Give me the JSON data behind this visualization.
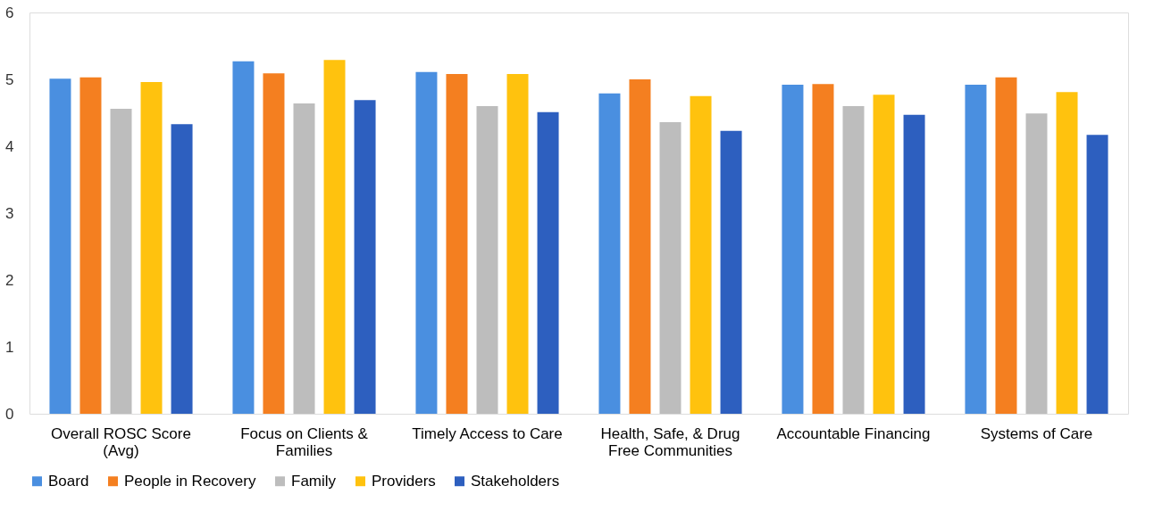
{
  "chart_data": {
    "type": "bar",
    "categories": [
      "Overall ROSC Score (Avg)",
      "Focus on Clients & Families",
      "Timely Access to Care",
      "Health, Safe, & Drug Free Communities",
      "Accountable Financing",
      "Systems of Care"
    ],
    "series": [
      {
        "name": "Board",
        "color": "#4a8fe0",
        "values": [
          5.01,
          5.27,
          5.11,
          4.79,
          4.92,
          4.92
        ]
      },
      {
        "name": "People in Recovery",
        "color": "#f47f20",
        "values": [
          5.03,
          5.09,
          5.08,
          5.0,
          4.93,
          5.03
        ]
      },
      {
        "name": "Family",
        "color": "#bdbdbd",
        "values": [
          4.56,
          4.64,
          4.6,
          4.36,
          4.6,
          4.49
        ]
      },
      {
        "name": "Providers",
        "color": "#ffc20e",
        "values": [
          4.96,
          5.29,
          5.08,
          4.75,
          4.77,
          4.81
        ]
      },
      {
        "name": "Stakeholders",
        "color": "#2d5fbf",
        "values": [
          4.33,
          4.69,
          4.51,
          4.23,
          4.47,
          4.17
        ]
      }
    ],
    "ylim": [
      0,
      6
    ],
    "yticks": [
      0,
      1,
      2,
      3,
      4,
      5,
      6
    ],
    "grid": false,
    "legend": "bottom"
  }
}
